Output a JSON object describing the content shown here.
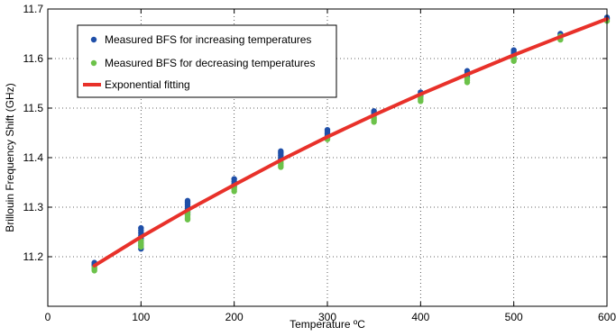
{
  "chart_data": {
    "type": "scatter",
    "title": "",
    "xlabel": "Temperature ºC",
    "ylabel": "Brillouin Frequency Shift (GHz)",
    "xlim": [
      0,
      600
    ],
    "ylim": [
      11.1,
      11.7
    ],
    "xticks": [
      0,
      100,
      200,
      300,
      400,
      500,
      600
    ],
    "yticks": [
      11.2,
      11.3,
      11.4,
      11.5,
      11.6,
      11.7
    ],
    "xtick_labels": [
      "0",
      "100",
      "200",
      "300",
      "400",
      "500",
      "600"
    ],
    "ytick_labels": [
      "11.2",
      "11.3",
      "11.4",
      "11.5",
      "11.6",
      "11.7"
    ],
    "grid": "dotted",
    "legend_position": "top-left",
    "series": [
      {
        "name": "Measured BFS for increasing temperatures",
        "kind": "scatter",
        "color": "#1f4fa8",
        "points": [
          [
            50,
            11.188
          ],
          [
            50,
            11.185
          ],
          [
            50,
            11.182
          ],
          [
            100,
            11.258
          ],
          [
            100,
            11.253
          ],
          [
            100,
            11.248
          ],
          [
            100,
            11.243
          ],
          [
            100,
            11.238
          ],
          [
            100,
            11.233
          ],
          [
            100,
            11.228
          ],
          [
            100,
            11.223
          ],
          [
            100,
            11.216
          ],
          [
            150,
            11.313
          ],
          [
            150,
            11.309
          ],
          [
            150,
            11.305
          ],
          [
            150,
            11.301
          ],
          [
            150,
            11.297
          ],
          [
            150,
            11.293
          ],
          [
            150,
            11.289
          ],
          [
            150,
            11.285
          ],
          [
            200,
            11.357
          ],
          [
            200,
            11.352
          ],
          [
            200,
            11.347
          ],
          [
            200,
            11.342
          ],
          [
            250,
            11.413
          ],
          [
            250,
            11.409
          ],
          [
            250,
            11.405
          ],
          [
            250,
            11.401
          ],
          [
            250,
            11.397
          ],
          [
            300,
            11.456
          ],
          [
            300,
            11.452
          ],
          [
            300,
            11.448
          ],
          [
            300,
            11.444
          ],
          [
            350,
            11.494
          ],
          [
            350,
            11.49
          ],
          [
            350,
            11.486
          ],
          [
            400,
            11.532
          ],
          [
            400,
            11.528
          ],
          [
            400,
            11.524
          ],
          [
            450,
            11.575
          ],
          [
            450,
            11.571
          ],
          [
            450,
            11.567
          ],
          [
            450,
            11.563
          ],
          [
            500,
            11.617
          ],
          [
            500,
            11.613
          ],
          [
            500,
            11.609
          ],
          [
            500,
            11.605
          ],
          [
            550,
            11.65
          ],
          [
            550,
            11.646
          ],
          [
            550,
            11.643
          ],
          [
            600,
            11.683
          ],
          [
            600,
            11.68
          ]
        ]
      },
      {
        "name": "Measured BFS for decreasing temperatures",
        "kind": "scatter",
        "color": "#6cc24a",
        "points": [
          [
            50,
            11.178
          ],
          [
            50,
            11.175
          ],
          [
            50,
            11.172
          ],
          [
            100,
            11.232
          ],
          [
            100,
            11.228
          ],
          [
            100,
            11.224
          ],
          [
            100,
            11.22
          ],
          [
            150,
            11.29
          ],
          [
            150,
            11.286
          ],
          [
            150,
            11.282
          ],
          [
            150,
            11.278
          ],
          [
            150,
            11.275
          ],
          [
            200,
            11.34
          ],
          [
            200,
            11.336
          ],
          [
            200,
            11.332
          ],
          [
            250,
            11.392
          ],
          [
            250,
            11.388
          ],
          [
            250,
            11.384
          ],
          [
            250,
            11.381
          ],
          [
            300,
            11.44
          ],
          [
            300,
            11.437
          ],
          [
            350,
            11.48
          ],
          [
            350,
            11.476
          ],
          [
            350,
            11.472
          ],
          [
            400,
            11.522
          ],
          [
            400,
            11.518
          ],
          [
            400,
            11.514
          ],
          [
            450,
            11.56
          ],
          [
            450,
            11.556
          ],
          [
            450,
            11.552
          ],
          [
            500,
            11.602
          ],
          [
            500,
            11.598
          ],
          [
            500,
            11.595
          ],
          [
            550,
            11.645
          ],
          [
            550,
            11.641
          ],
          [
            550,
            11.638
          ],
          [
            600,
            11.676
          ]
        ]
      },
      {
        "name": "Exponential fitting",
        "kind": "line",
        "color": "#e8312a",
        "x": [
          50,
          100,
          150,
          200,
          250,
          300,
          350,
          400,
          450,
          500,
          550,
          600
        ],
        "y": [
          11.182,
          11.24,
          11.294,
          11.345,
          11.395,
          11.442,
          11.486,
          11.528,
          11.568,
          11.607,
          11.644,
          11.68
        ]
      }
    ]
  }
}
